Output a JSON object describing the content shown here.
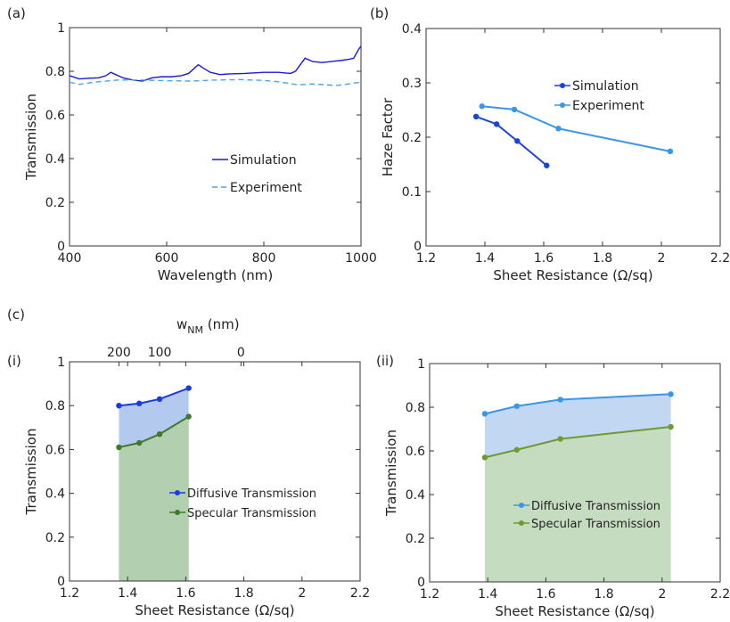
{
  "panels": {
    "a": "(a)",
    "b": "(b)",
    "c": "(c)",
    "ci": "(i)",
    "cii": "(ii)"
  },
  "chart_data": [
    {
      "id": "a",
      "type": "line",
      "xlabel": "Wavelength (nm)",
      "ylabel": "Transmission",
      "xlim": [
        400,
        1000
      ],
      "ylim": [
        0,
        1
      ],
      "xticks": [
        400,
        600,
        800,
        1000
      ],
      "yticks": [
        0,
        0.2,
        0.4,
        0.6,
        0.8,
        1
      ],
      "ytick_labels": [
        "0",
        "0.2",
        "0.4",
        "0.6",
        "0.8",
        "1"
      ],
      "grid": false,
      "legend": "lower-right",
      "series": [
        {
          "name": "Simulation",
          "color": "#1a1ad4",
          "style": "solid",
          "x": [
            400,
            420,
            440,
            460,
            475,
            485,
            495,
            510,
            530,
            550,
            570,
            590,
            610,
            630,
            645,
            655,
            665,
            675,
            690,
            710,
            730,
            760,
            800,
            830,
            855,
            865,
            875,
            885,
            900,
            920,
            940,
            960,
            975,
            985,
            990,
            995,
            1000
          ],
          "y": [
            0.78,
            0.765,
            0.768,
            0.77,
            0.78,
            0.795,
            0.785,
            0.77,
            0.76,
            0.755,
            0.77,
            0.775,
            0.775,
            0.78,
            0.79,
            0.81,
            0.83,
            0.815,
            0.795,
            0.785,
            0.788,
            0.79,
            0.795,
            0.795,
            0.79,
            0.8,
            0.83,
            0.86,
            0.845,
            0.84,
            0.845,
            0.85,
            0.855,
            0.86,
            0.88,
            0.9,
            0.915
          ]
        },
        {
          "name": "Experiment",
          "color": "#4aa3ee",
          "style": "dashed",
          "x": [
            400,
            420,
            450,
            500,
            550,
            600,
            650,
            700,
            750,
            800,
            830,
            850,
            870,
            900,
            950,
            1000
          ],
          "y": [
            0.75,
            0.74,
            0.75,
            0.76,
            0.76,
            0.757,
            0.755,
            0.76,
            0.762,
            0.758,
            0.752,
            0.745,
            0.738,
            0.742,
            0.735,
            0.75
          ]
        }
      ]
    },
    {
      "id": "b",
      "type": "line",
      "xlabel": "Sheet Resistance (Ω/sq)",
      "ylabel": "Haze Factor",
      "xlim": [
        1.2,
        2.2
      ],
      "ylim": [
        0,
        0.4
      ],
      "xticks": [
        1.2,
        1.4,
        1.6,
        1.8,
        2.0,
        2.2
      ],
      "xtick_labels": [
        "1.2",
        "1.4",
        "1.6",
        "1.8",
        "2",
        "2.2"
      ],
      "yticks": [
        0,
        0.1,
        0.2,
        0.3,
        0.4
      ],
      "ytick_labels": [
        "0",
        "0.1",
        "0.2",
        "0.3",
        "0.4"
      ],
      "grid": false,
      "legend": "top-right",
      "series": [
        {
          "name": "Simulation",
          "color": "#1a44d6",
          "x": [
            1.37,
            1.44,
            1.51,
            1.61
          ],
          "y": [
            0.238,
            0.224,
            0.193,
            0.148
          ]
        },
        {
          "name": "Experiment",
          "color": "#3a96ea",
          "x": [
            1.39,
            1.5,
            1.65,
            2.03
          ],
          "y": [
            0.257,
            0.251,
            0.216,
            0.174
          ]
        }
      ]
    },
    {
      "id": "ci",
      "type": "area",
      "xlabel": "Sheet Resistance (Ω/sq)",
      "ylabel": "Transmission",
      "top_xlabel": "w",
      "top_xlabel_sub": "NM",
      "top_xlabel_unit": "(nm)",
      "top_ticks": [
        {
          "label": "200",
          "x": 1.37
        },
        {
          "label": "100",
          "x": 1.51
        },
        {
          "label": "0",
          "x": 1.79
        }
      ],
      "xlim": [
        1.2,
        2.2
      ],
      "ylim": [
        0,
        1
      ],
      "xticks": [
        1.2,
        1.4,
        1.6,
        1.8,
        2.0,
        2.2
      ],
      "xtick_labels": [
        "1.2",
        "1.4",
        "1.6",
        "1.8",
        "2",
        "2.2"
      ],
      "yticks": [
        0,
        0.2,
        0.4,
        0.6,
        0.8,
        1
      ],
      "ytick_labels": [
        "0",
        "0.2",
        "0.4",
        "0.6",
        "0.8",
        "1"
      ],
      "grid": false,
      "legend": "lower-right",
      "series": [
        {
          "name": "Diffusive Transmission",
          "color": "#1a3be0",
          "fill": "#b3c9ee",
          "x": [
            1.37,
            1.44,
            1.51,
            1.61
          ],
          "y": [
            0.8,
            0.81,
            0.83,
            0.88
          ]
        },
        {
          "name": "Specular Transmission",
          "color": "#3f7a2a",
          "fill": "#b2d0b0",
          "x": [
            1.37,
            1.44,
            1.51,
            1.61
          ],
          "y": [
            0.61,
            0.63,
            0.67,
            0.75
          ]
        }
      ]
    },
    {
      "id": "cii",
      "type": "area",
      "xlabel": "Sheet Resistance (Ω/sq)",
      "ylabel": "Transmission",
      "xlim": [
        1.2,
        2.2
      ],
      "ylim": [
        0,
        1
      ],
      "xticks": [
        1.2,
        1.4,
        1.6,
        1.8,
        2.0,
        2.2
      ],
      "xtick_labels": [
        "1.2",
        "1.4",
        "1.6",
        "1.8",
        "2",
        "2.2"
      ],
      "yticks": [
        0,
        0.2,
        0.4,
        0.6,
        0.8,
        1
      ],
      "ytick_labels": [
        "0",
        "0.2",
        "0.4",
        "0.6",
        "0.8",
        "1"
      ],
      "grid": false,
      "legend": "lower-right",
      "series": [
        {
          "name": "Diffusive Transmission",
          "color": "#3a96ea",
          "fill": "#c2d7f1",
          "x": [
            1.39,
            1.5,
            1.65,
            2.03
          ],
          "y": [
            0.77,
            0.805,
            0.835,
            0.86
          ]
        },
        {
          "name": "Specular Transmission",
          "color": "#6e9a2e",
          "fill": "#c6dcc0",
          "x": [
            1.39,
            1.5,
            1.65,
            2.03
          ],
          "y": [
            0.57,
            0.605,
            0.655,
            0.71
          ]
        }
      ]
    }
  ]
}
